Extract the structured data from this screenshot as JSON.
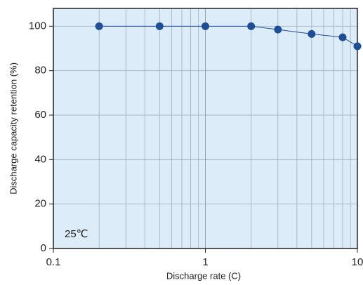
{
  "chart_data": {
    "type": "line",
    "x_label": "Discharge rate (C)",
    "y_label": "Discharge capacity retention (%)",
    "annotation": "25℃",
    "x": [
      0.2,
      0.5,
      1,
      2,
      3,
      5,
      8,
      10
    ],
    "series": [
      {
        "name": "Discharge capacity retention",
        "color": "#1f4e96",
        "values": [
          100,
          100,
          100,
          100,
          98.5,
          96.5,
          95,
          91
        ]
      }
    ],
    "xlim": [
      0.1,
      10
    ],
    "xticks": [
      0.1,
      1,
      10
    ],
    "xlog": true,
    "ylim": [
      0,
      108
    ],
    "yticks": [
      0,
      20,
      40,
      60,
      80,
      100
    ],
    "grid": true,
    "background": "#dcedf9"
  }
}
